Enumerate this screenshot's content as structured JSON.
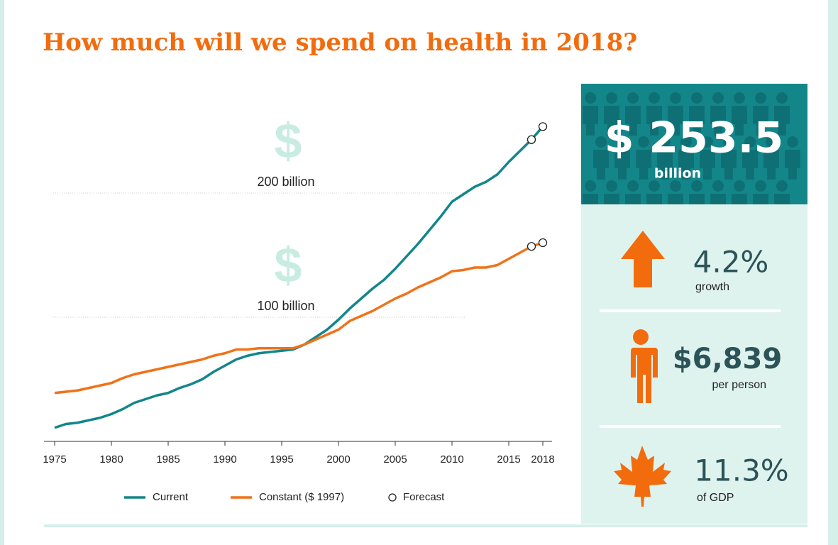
{
  "title": "How much will we spend on health in 2018?",
  "chart_data": {
    "type": "line",
    "x": [
      1975,
      1976,
      1977,
      1978,
      1979,
      1980,
      1981,
      1982,
      1983,
      1984,
      1985,
      1986,
      1987,
      1988,
      1989,
      1990,
      1991,
      1992,
      1993,
      1994,
      1995,
      1996,
      1997,
      1998,
      1999,
      2000,
      2001,
      2002,
      2003,
      2004,
      2005,
      2006,
      2007,
      2008,
      2009,
      2010,
      2011,
      2012,
      2013,
      2014,
      2015,
      2016,
      2017,
      2018
    ],
    "series": [
      {
        "name": "Current",
        "color": "#13868a",
        "values": [
          11,
          14,
          15,
          17,
          19,
          22,
          26,
          31,
          34,
          37,
          39,
          43,
          46,
          50,
          56,
          61,
          66,
          69,
          71,
          72,
          73,
          74,
          78,
          84,
          90,
          98,
          107,
          115,
          123,
          130,
          139,
          149,
          159,
          170,
          181,
          193,
          199,
          205,
          209,
          215,
          225,
          234,
          243,
          253.5
        ]
      },
      {
        "name": "Constant ($ 1997)",
        "color": "#f07219",
        "values": [
          39,
          40,
          41,
          43,
          45,
          47,
          51,
          54,
          56,
          58,
          60,
          62,
          64,
          66,
          69,
          71,
          74,
          74,
          75,
          75,
          75,
          75,
          78,
          82,
          86,
          90,
          97,
          101,
          105,
          110,
          115,
          119,
          124,
          128,
          132,
          137,
          138,
          140,
          140,
          142,
          147,
          152,
          157,
          160
        ]
      }
    ],
    "forecast": {
      "name": "Forecast",
      "x": [
        2017,
        2018
      ]
    },
    "xlim": [
      1974,
      2019
    ],
    "xticks": [
      1975,
      1980,
      1985,
      1990,
      1995,
      2000,
      2005,
      2010,
      2015,
      2018
    ],
    "ylim": [
      0,
      270
    ],
    "yticks": [
      {
        "value": 100,
        "label": "100 billion"
      },
      {
        "value": 200,
        "label": "200 billion"
      }
    ],
    "grid_symbol": "$",
    "grid": true
  },
  "summary": {
    "total": "$ 253.5",
    "total_unit": "billion",
    "stats": [
      {
        "value": "4.2%",
        "label": "growth"
      },
      {
        "value": "$6,839",
        "label": "per person"
      },
      {
        "value": "11.3%",
        "label": "of GDP"
      }
    ]
  }
}
